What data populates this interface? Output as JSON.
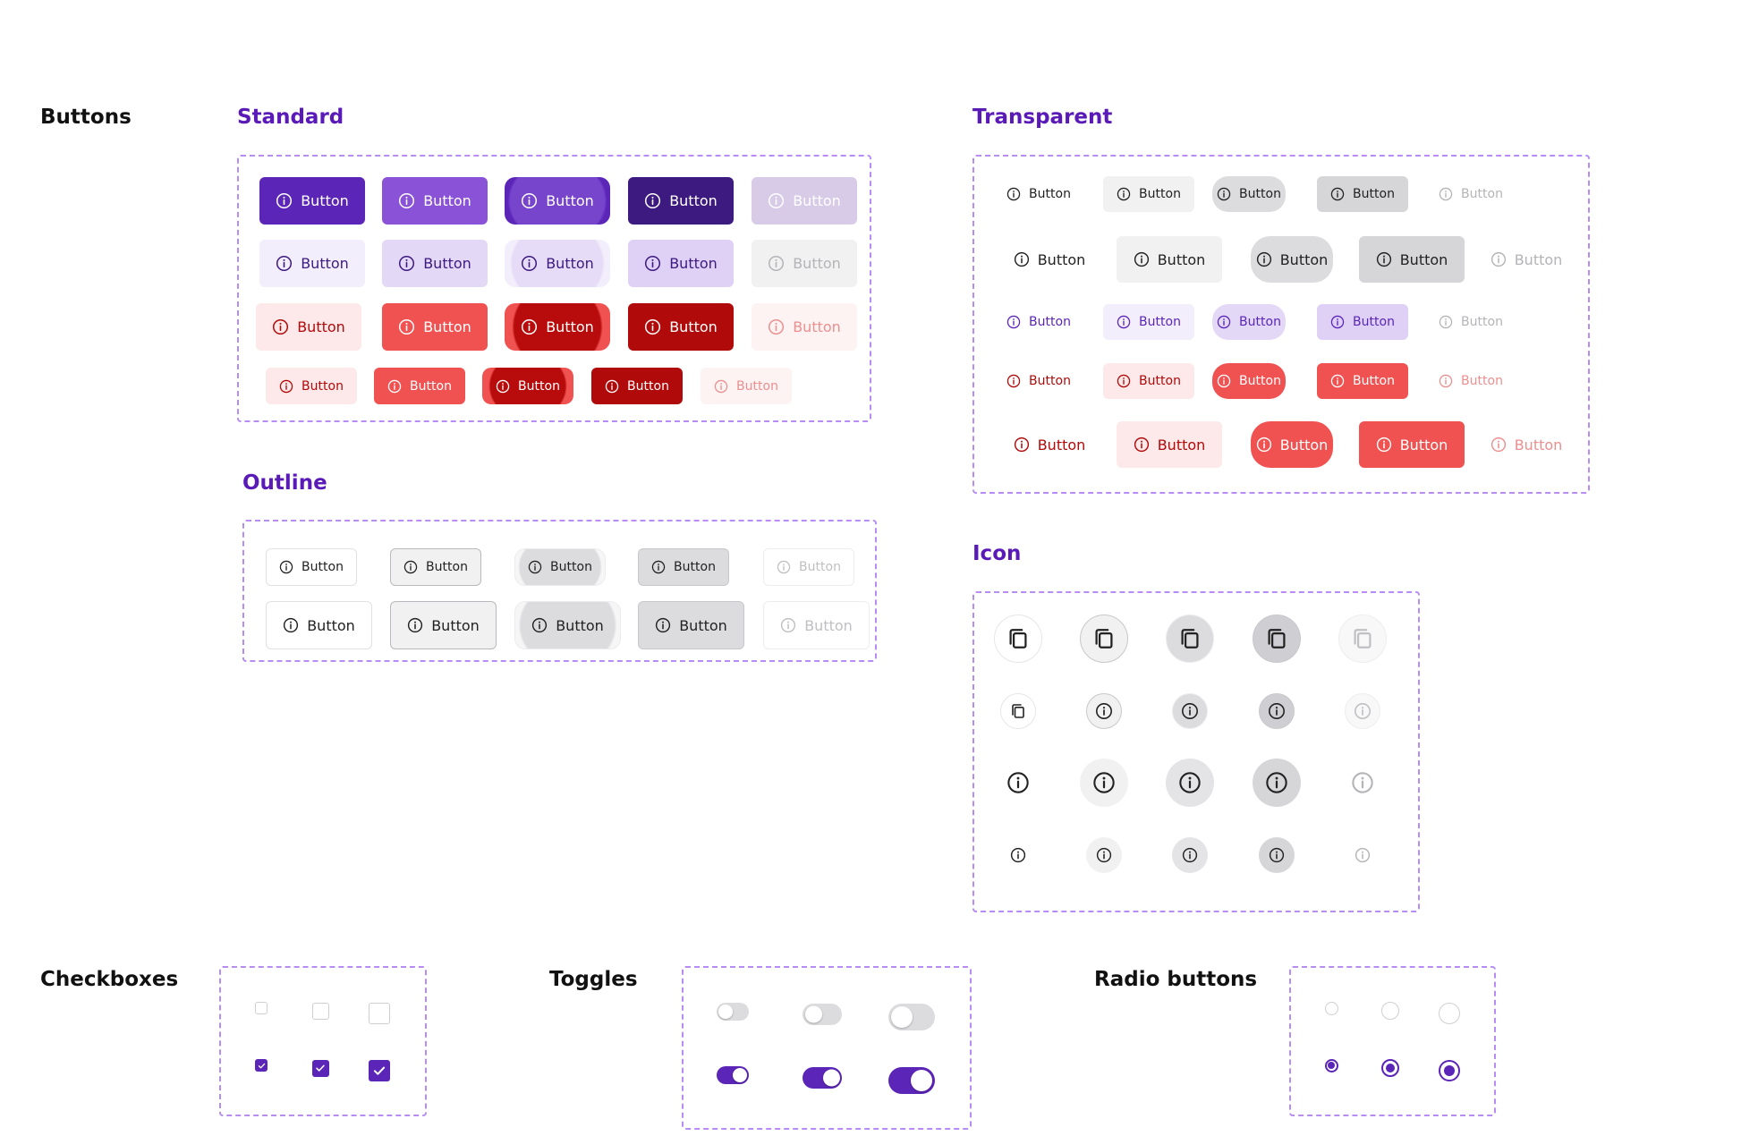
{
  "headings": {
    "buttons": "Buttons",
    "checkboxes": "Checkboxes",
    "toggles": "Toggles",
    "radio_buttons": "Radio buttons"
  },
  "subheadings": {
    "standard": "Standard",
    "outline": "Outline",
    "transparent": "Transparent",
    "icon": "Icon"
  },
  "button_label": "Button",
  "icons": {
    "button_icon": "info-icon",
    "icon_button_row1": "copy-icon",
    "icon_button_row2_first": "copy-icon",
    "icon_button_other": "info-icon",
    "checkbox_mark": "check-icon"
  },
  "colors": {
    "primary": "#5b25b8",
    "primary_dark": "#3d1a80",
    "primary_light": "#8a52d6",
    "primary_tint": "#e4d8f7",
    "danger": "#f05252",
    "danger_dark": "#b00a0a",
    "danger_tint": "#fde9e9",
    "neutral": "#d9d9dc",
    "frame_border": "#b78df5"
  },
  "states": [
    "default",
    "hover",
    "pressed",
    "focused",
    "disabled"
  ],
  "checkboxes": {
    "rows": [
      "unchecked",
      "checked"
    ],
    "sizes": [
      "small",
      "medium",
      "large"
    ]
  },
  "toggles": {
    "rows": [
      "off",
      "on"
    ],
    "sizes": [
      "small",
      "medium",
      "large"
    ]
  },
  "radio_buttons": {
    "rows": [
      "unselected",
      "selected"
    ],
    "sizes": [
      "small",
      "medium",
      "large"
    ]
  }
}
